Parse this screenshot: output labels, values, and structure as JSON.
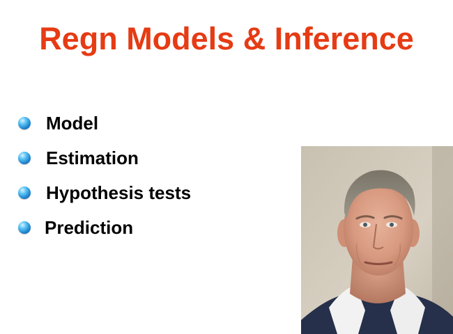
{
  "slide": {
    "title": "Regn Models & Inference",
    "bullets": [
      {
        "label": "Model",
        "icon": "bullet-sphere-icon"
      },
      {
        "label": "Estimation",
        "icon": "bullet-sphere-icon"
      },
      {
        "label": "Hypothesis tests",
        "icon": "bullet-sphere-icon"
      },
      {
        "label": "Prediction",
        "icon": "bullet-sphere-icon"
      }
    ],
    "photo": {
      "subject": "portrait-photo"
    }
  },
  "colors": {
    "title": "#e63b14",
    "text": "#000000",
    "bullet_blue": "#1f84cf",
    "background": "#ffffff"
  }
}
